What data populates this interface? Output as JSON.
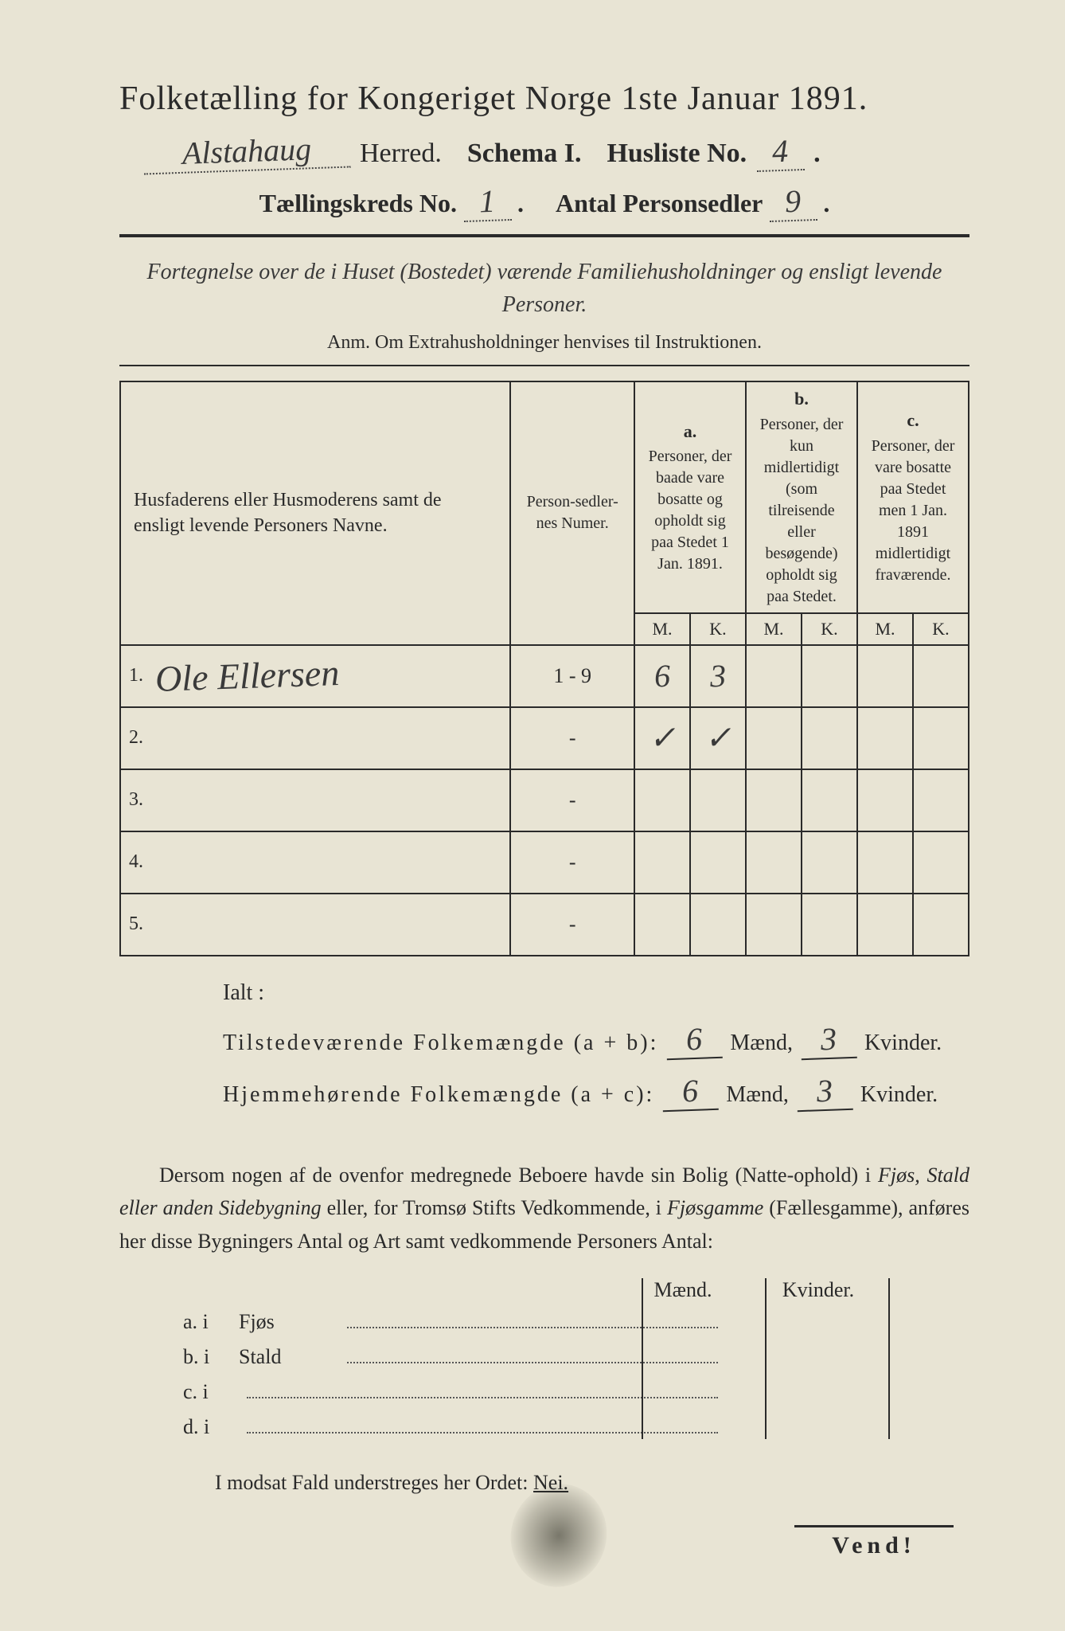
{
  "title": "Folketælling for Kongeriget Norge 1ste Januar 1891.",
  "herred_hand": "Alstahaug",
  "herred_label": "Herred.",
  "schema_label": "Schema I.",
  "husliste_label": "Husliste No.",
  "husliste_no": "4",
  "telling_label_a": "Tællingskreds No.",
  "telling_no": "1",
  "telling_label_b": "Antal Personsedler",
  "personsedler": "9",
  "fortegnelse": "Fortegnelse over de i Huset (Bostedet) værende Familiehusholdninger og ensligt levende Personer.",
  "anm": "Anm.  Om Extrahusholdninger henvises til Instruktionen.",
  "table": {
    "col1": "Husfaderens eller Husmoderens samt de ensligt levende Personers Navne.",
    "col2": "Person-sedler-nes Numer.",
    "col_a_letter": "a.",
    "col_a": "Personer, der baade vare bosatte og opholdt sig paa Stedet 1 Jan. 1891.",
    "col_b_letter": "b.",
    "col_b": "Personer, der kun midlertidigt (som tilreisende eller besøgende) opholdt sig paa Stedet.",
    "col_c_letter": "c.",
    "col_c": "Personer, der vare bosatte paa Stedet men 1 Jan. 1891 midlertidigt fraværende.",
    "m": "M.",
    "k": "K.",
    "rows": [
      {
        "n": "1.",
        "name": "Ole Ellersen",
        "pnum": "1 - 9",
        "am": "6",
        "ak": "3",
        "bm": "",
        "bk": "",
        "cm": "",
        "ck": ""
      },
      {
        "n": "2.",
        "name": "",
        "pnum": "-",
        "am": "✓",
        "ak": "✓",
        "bm": "",
        "bk": "",
        "cm": "",
        "ck": ""
      },
      {
        "n": "3.",
        "name": "",
        "pnum": "-",
        "am": "",
        "ak": "",
        "bm": "",
        "bk": "",
        "cm": "",
        "ck": ""
      },
      {
        "n": "4.",
        "name": "",
        "pnum": "-",
        "am": "",
        "ak": "",
        "bm": "",
        "bk": "",
        "cm": "",
        "ck": ""
      },
      {
        "n": "5.",
        "name": "",
        "pnum": "-",
        "am": "",
        "ak": "",
        "bm": "",
        "bk": "",
        "cm": "",
        "ck": ""
      }
    ]
  },
  "ialt": "Ialt :",
  "sum1_label": "Tilstedeværende  Folkemængde (a + b):",
  "sum1_m": "6",
  "sum1_k": "3",
  "sum2_label": "Hjemmehørende  Folkemængde (a + c):",
  "sum2_m": "6",
  "sum2_k": "3",
  "maend": "Mænd,",
  "kvinder": "Kvinder.",
  "paragraph": "Dersom nogen af de ovenfor medregnede Beboere havde sin Bolig (Natte-ophold) i Fjøs, Stald eller anden Sidebygning eller, for Tromsø Stifts Vedkommende, i Fjøsgamme (Fællesgamme), anføres her disse Bygningers Antal og Art samt vedkommende Personers Antal:",
  "maend2": "Mænd.",
  "kvinder2": "Kvinder.",
  "byg_a": "a.  i",
  "byg_a_type": "Fjøs",
  "byg_b": "b.  i",
  "byg_b_type": "Stald",
  "byg_c": "c.  i",
  "byg_d": "d.  i",
  "modsat": "I modsat Fald understreges her Ordet:",
  "nei": "Nei.",
  "vend": "Vend!"
}
